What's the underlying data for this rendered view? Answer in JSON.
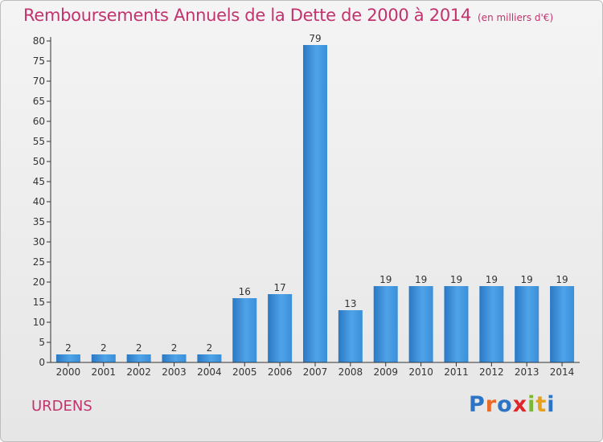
{
  "chart_data": {
    "type": "bar",
    "title": "Remboursements Annuels de la Dette de 2000 à 2014",
    "subtitle": "(en milliers d'€)",
    "categories": [
      "2000",
      "2001",
      "2002",
      "2003",
      "2004",
      "2005",
      "2006",
      "2007",
      "2008",
      "2009",
      "2010",
      "2011",
      "2012",
      "2013",
      "2014"
    ],
    "values": [
      2,
      2,
      2,
      2,
      2,
      16,
      17,
      79,
      13,
      19,
      19,
      19,
      19,
      19,
      19
    ],
    "ylim": [
      0,
      80
    ],
    "yticks": [
      0,
      5,
      10,
      15,
      20,
      25,
      30,
      35,
      40,
      45,
      50,
      55,
      60,
      65,
      70,
      75,
      80
    ],
    "grid": false,
    "data_labels": true,
    "bar_color": "#3a8fd9"
  },
  "footer": {
    "place": "URDENS",
    "logo": [
      "P",
      "r",
      "o",
      "x",
      "i",
      "t",
      "i"
    ],
    "logo_colors": [
      "#2d74c4",
      "#e86a2a",
      "#2d74c4",
      "#e0262a",
      "#7ab833",
      "#e8a21a",
      "#2d74c4"
    ]
  },
  "colors": {
    "title": "#c2336e",
    "axis": "#333333"
  }
}
